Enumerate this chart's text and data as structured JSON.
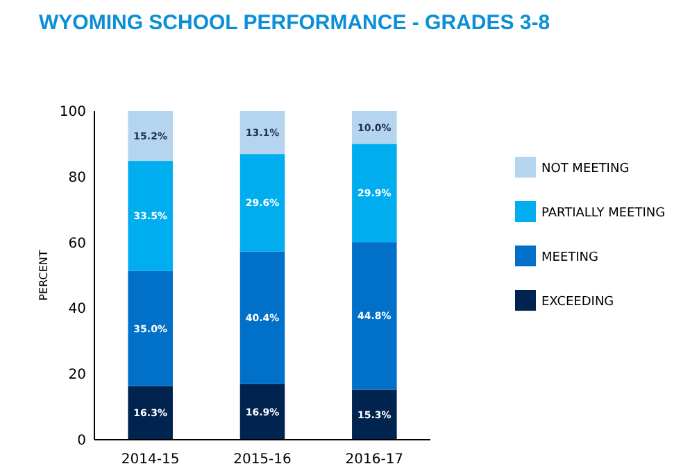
{
  "chart_data": {
    "type": "bar",
    "title": "WYOMING SCHOOL PERFORMANCE - GRADES 3-8",
    "ylabel": "PERCENT",
    "categories": [
      "2014-15",
      "2015-16",
      "2016-17"
    ],
    "stacked": true,
    "ylim": [
      0,
      100
    ],
    "yticks": [
      0,
      20,
      40,
      60,
      80,
      100
    ],
    "grid": false,
    "legend": "right",
    "series": [
      {
        "name": "EXCEEDING",
        "color": "#00234f",
        "values": [
          16.3,
          16.9,
          15.3
        ],
        "value_labels": [
          "16.3%",
          "16.9%",
          "15.3%"
        ]
      },
      {
        "name": "MEETING",
        "color": "#0070c9",
        "values": [
          35.0,
          40.4,
          44.8
        ],
        "value_labels": [
          "35.0%",
          "40.4%",
          "44.8%"
        ]
      },
      {
        "name": "PARTIALLY MEETING",
        "color": "#00aeef",
        "values": [
          33.5,
          29.6,
          29.9
        ],
        "value_labels": [
          "33.5%",
          "29.6%",
          "29.9%"
        ]
      },
      {
        "name": "NOT MEETING",
        "color": "#b5d4ef",
        "values": [
          15.2,
          13.1,
          10.0
        ],
        "value_labels": [
          "15.2%",
          "13.1%",
          "10.0%"
        ]
      }
    ]
  }
}
